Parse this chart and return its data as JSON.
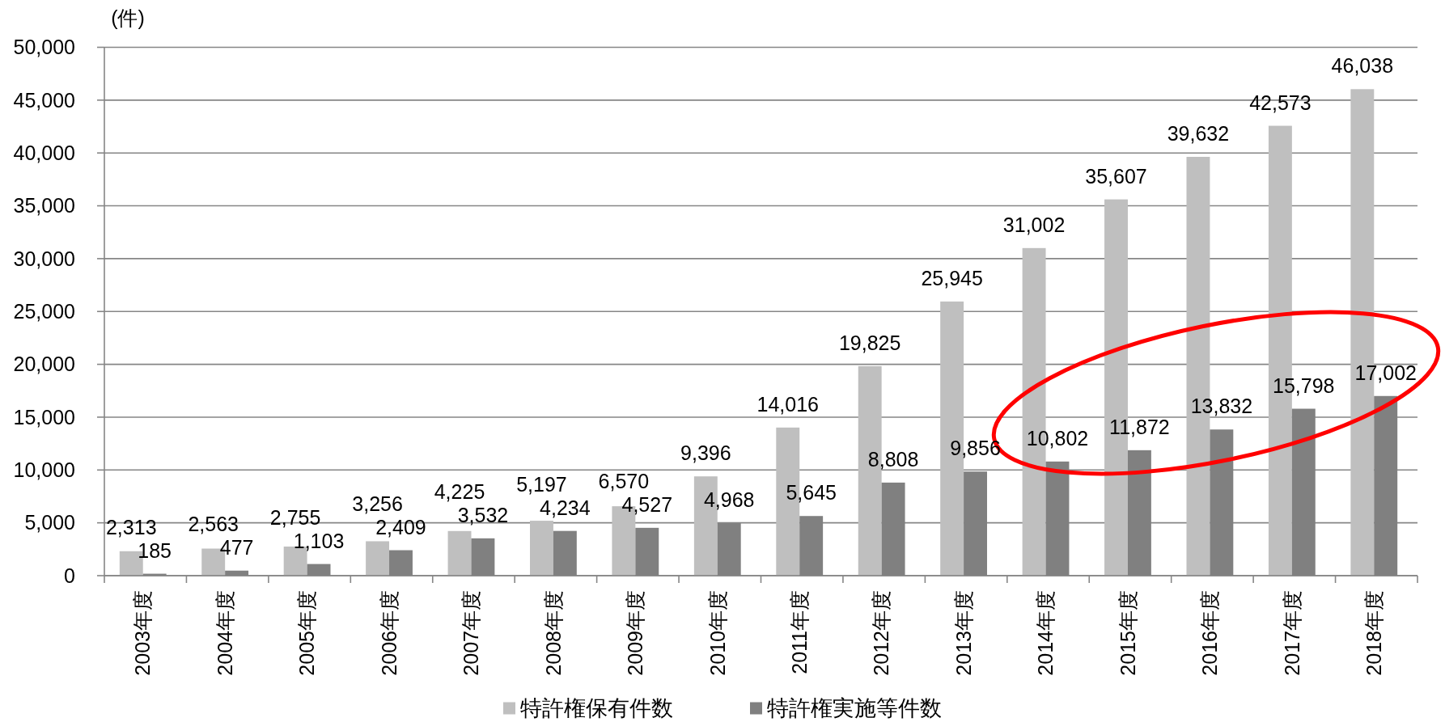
{
  "chart_data": {
    "type": "bar",
    "ylabel": "(件)",
    "categories": [
      "2003年度",
      "2004年度",
      "2005年度",
      "2006年度",
      "2007年度",
      "2008年度",
      "2009年度",
      "2010年度",
      "2011年度",
      "2012年度",
      "2013年度",
      "2014年度",
      "2015年度",
      "2016年度",
      "2017年度",
      "2018年度"
    ],
    "series": [
      {
        "name": "特許権保有件数",
        "color": "#bfbfbf",
        "values": [
          2313,
          2563,
          2755,
          3256,
          4225,
          5197,
          6570,
          9396,
          14016,
          19825,
          25945,
          31002,
          35607,
          39632,
          42573,
          46038
        ],
        "value_labels": [
          "2,313",
          "2,563",
          "2,755",
          "3,256",
          "4,225",
          "5,197",
          "6,570",
          "9,396",
          "14,016",
          "19,825",
          "25,945",
          "31,002",
          "35,607",
          "39,632",
          "42,573",
          "46,038"
        ]
      },
      {
        "name": "特許権実施等件数",
        "color": "#808080",
        "values": [
          185,
          477,
          1103,
          2409,
          3532,
          4234,
          4527,
          4968,
          5645,
          8808,
          9856,
          10802,
          11872,
          13832,
          15798,
          17002
        ],
        "value_labels": [
          "185",
          "477",
          "1,103",
          "2,409",
          "3,532",
          "4,234",
          "4,527",
          "4,968",
          "5,645",
          "8,808",
          "9,856",
          "10,802",
          "11,872",
          "13,832",
          "15,798",
          "17,002"
        ]
      }
    ],
    "ylim": [
      0,
      50000
    ],
    "yticks": [
      0,
      {
        "value": 5000,
        "label": "5,000"
      },
      {
        "value": 10000,
        "label": "10,000"
      },
      {
        "value": 15000,
        "label": "15,000"
      },
      {
        "value": 20000,
        "label": "20,000"
      },
      {
        "value": 25000,
        "label": "25,000"
      },
      {
        "value": 30000,
        "label": "30,000"
      },
      {
        "value": 35000,
        "label": "35,000"
      },
      {
        "value": 40000,
        "label": "40,000"
      },
      {
        "value": 45000,
        "label": "45,000"
      },
      {
        "value": 50000,
        "label": "50,000"
      }
    ],
    "grid": "y",
    "legend": "bottom"
  }
}
